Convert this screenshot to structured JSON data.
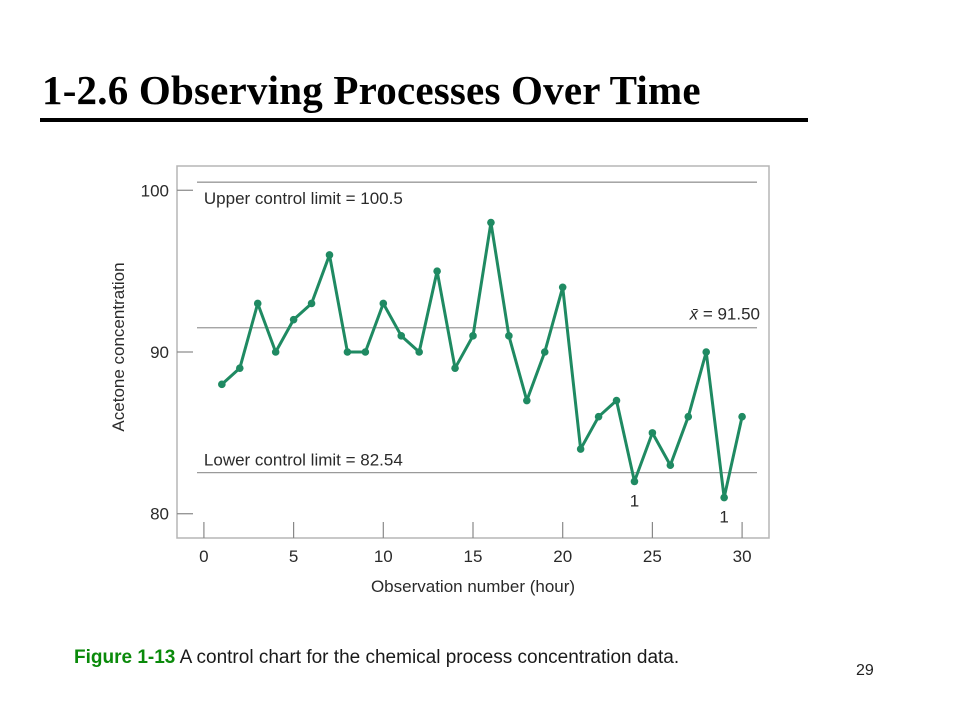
{
  "slide": {
    "title": "1-2.6 Observing Processes Over Time",
    "caption_label": "Figure 1-13",
    "caption_text": "  A control chart for the chemical process concentration data.",
    "page_number": "29"
  },
  "chart_data": {
    "type": "line",
    "xlabel": "Observation number (hour)",
    "ylabel": "Acetone concentration",
    "xlim": [
      -1.5,
      31.5
    ],
    "ylim": [
      78.5,
      101.5
    ],
    "x_ticks": [
      0,
      5,
      10,
      15,
      20,
      25,
      30
    ],
    "y_ticks": [
      80,
      90,
      100
    ],
    "x": [
      1,
      2,
      3,
      4,
      5,
      6,
      7,
      8,
      9,
      10,
      11,
      12,
      13,
      14,
      15,
      16,
      17,
      18,
      19,
      20,
      21,
      22,
      23,
      24,
      25,
      26,
      27,
      28,
      29,
      30
    ],
    "y": [
      88,
      89,
      93,
      90,
      92,
      93,
      96,
      90,
      90,
      93,
      91,
      90,
      95,
      89,
      91,
      98,
      91,
      87,
      90,
      94,
      84,
      86,
      87,
      82,
      85,
      83,
      86,
      90,
      81,
      86
    ],
    "reference_lines": [
      {
        "label": "Upper control limit = 100.5",
        "value": 100.5
      },
      {
        "label": "= 91.50",
        "symbol": "x̄",
        "value": 91.5
      },
      {
        "label": "Lower control limit = 82.54",
        "value": 82.54
      }
    ],
    "annotations": [
      {
        "text": "1",
        "x": 24
      },
      {
        "text": "1",
        "x": 29
      }
    ],
    "colors": {
      "series": "#1f8a62",
      "reference": "#9a9a9a",
      "frame": "#b5b5b5",
      "text": "#2a2a2a"
    }
  }
}
